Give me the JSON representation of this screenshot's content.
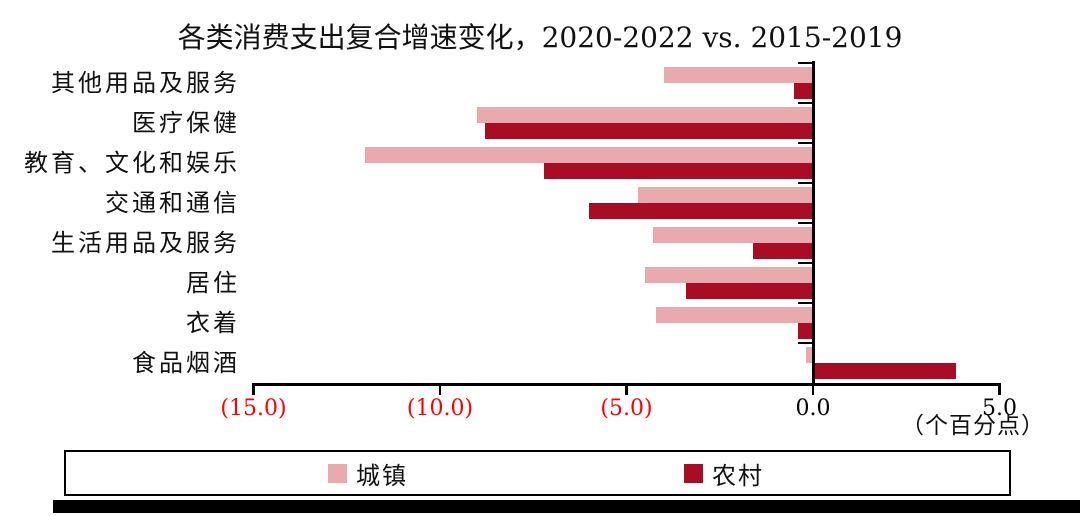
{
  "title": "各类消费支出复合增速变化，2020-2022 vs. 2015-2019",
  "chart_data": {
    "type": "bar",
    "orientation": "horizontal",
    "title": "各类消费支出复合增速变化，2020-2022 vs. 2015-2019",
    "categories": [
      "其他用品及服务",
      "医疗保健",
      "教育、文化和娱乐",
      "交通和通信",
      "生活用品及服务",
      "居住",
      "衣着",
      "食品烟酒"
    ],
    "series": [
      {
        "name": "城镇",
        "color": "#E8AAAD",
        "values": [
          -4.0,
          -9.0,
          -12.0,
          -4.7,
          -4.3,
          -4.5,
          -4.2,
          -0.2
        ]
      },
      {
        "name": "农村",
        "color": "#A90C25",
        "values": [
          -0.5,
          -8.8,
          -7.2,
          -6.0,
          -1.6,
          -3.4,
          -0.4,
          3.8
        ]
      }
    ],
    "x_ticks": [
      {
        "value": -15,
        "label": "(15.0)",
        "color": "#FF0000"
      },
      {
        "value": -10,
        "label": "(10.0)",
        "color": "#FF0000"
      },
      {
        "value": -5,
        "label": "(5.0)",
        "color": "#FF0000"
      },
      {
        "value": 0,
        "label": "0.0",
        "color": "#000000"
      },
      {
        "value": 5,
        "label": "5.0",
        "color": "#000000"
      }
    ],
    "xlim": [
      -15,
      5
    ],
    "xlabel_unit": "（个百分点）",
    "grid": false,
    "legend_position": "bottom",
    "value_unit": "percentage points"
  },
  "colors": {
    "urban_bar": "#E8AAAD",
    "rural_bar": "#A90C25",
    "negative_tick_label": "#FF0000",
    "axis": "#000000",
    "background": "#FFFFFF",
    "bottom_bar": "#000000"
  }
}
